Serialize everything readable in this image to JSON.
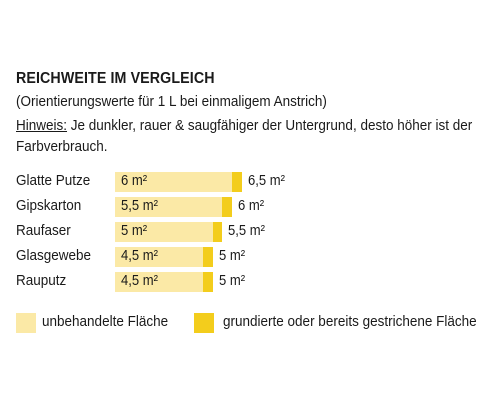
{
  "colors": {
    "unprimed": "#fbe9a6",
    "primed": "#f3cd1c"
  },
  "chart_data": {
    "type": "bar",
    "orientation": "horizontal",
    "stacked": true,
    "title": "REICHWEITE IM VERGLEICH",
    "subtitle": "(Orientierungswerte für 1 L bei einmaligem Anstrich)",
    "note_label": "Hinweis:",
    "note_text": " Je dunkler, rauer & saugfähiger der Untergrund, desto höher ist der Farbverbrauch.",
    "categories": [
      "Glatte Putze",
      "Gipskarton",
      "Raufaser",
      "Glasgewebe",
      "Rauputz"
    ],
    "series": [
      {
        "name": "unbehandelte Fläche",
        "values": [
          6,
          5.5,
          5,
          4.5,
          4.5
        ],
        "labels": [
          "6 m²",
          "5,5 m²",
          "5 m²",
          "4,5 m²",
          "4,5 m²"
        ]
      },
      {
        "name": "grundierte oder bereits gestrichene Fläche",
        "values": [
          6.5,
          6,
          5.5,
          5,
          5
        ],
        "labels": [
          "6,5 m²",
          "6 m²",
          "5,5 m²",
          "5 m²",
          "5 m²"
        ]
      }
    ],
    "unit": "m²",
    "grid": false,
    "legend_position": "bottom"
  }
}
